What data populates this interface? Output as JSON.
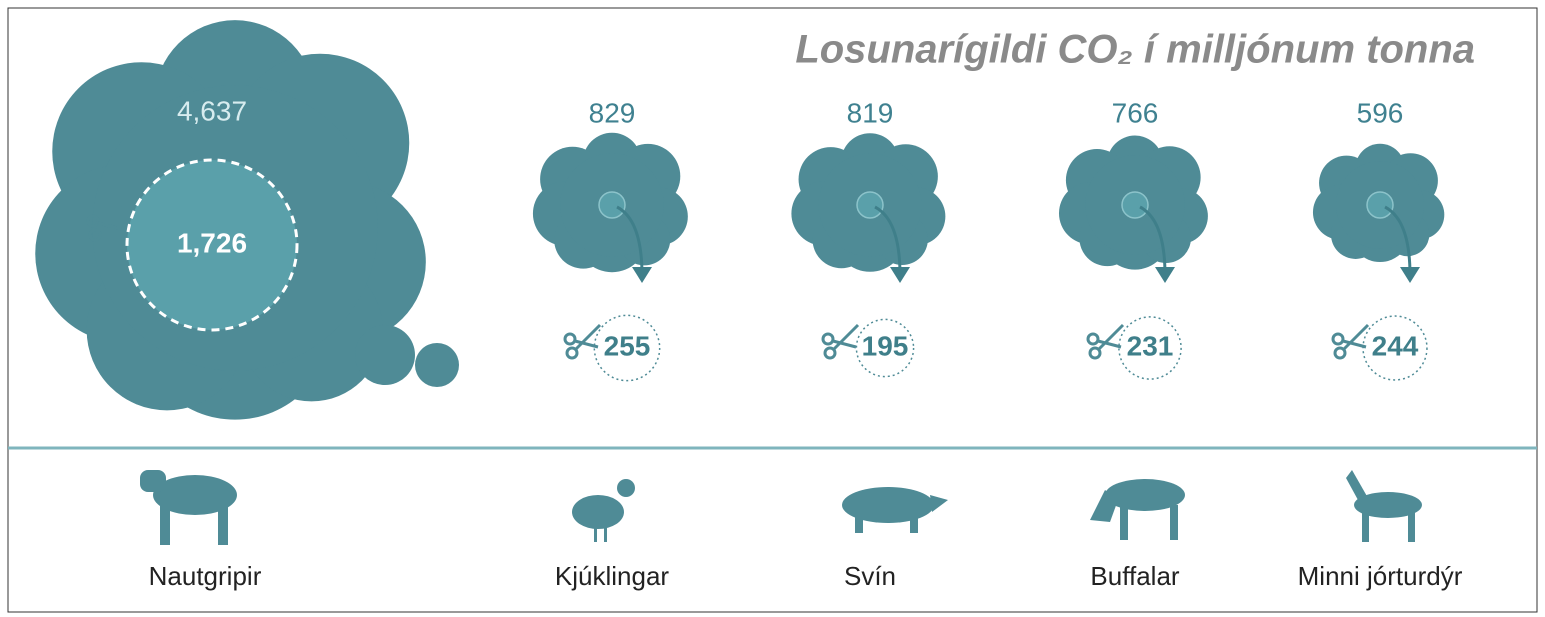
{
  "chart_data": {
    "type": "cloud",
    "title": "Losunarígildi CO₂ í milljónum tonna",
    "categories": [
      "Nautgripir",
      "Kjúklingar",
      "Svín",
      "Buffalar",
      "Minni jórturdýr"
    ],
    "series": [
      {
        "name": null,
        "color": "#4f8b96",
        "values": [
          4637,
          829,
          819,
          766,
          596
        ],
        "value_labels": [
          "4,637",
          "829",
          "819",
          "766",
          "596"
        ]
      },
      {
        "name": null,
        "color": "#5aa0aa",
        "values": [
          1726,
          255,
          195,
          231,
          244
        ],
        "value_labels": [
          "1,726",
          "255",
          "195",
          "231",
          "244"
        ]
      }
    ]
  }
}
